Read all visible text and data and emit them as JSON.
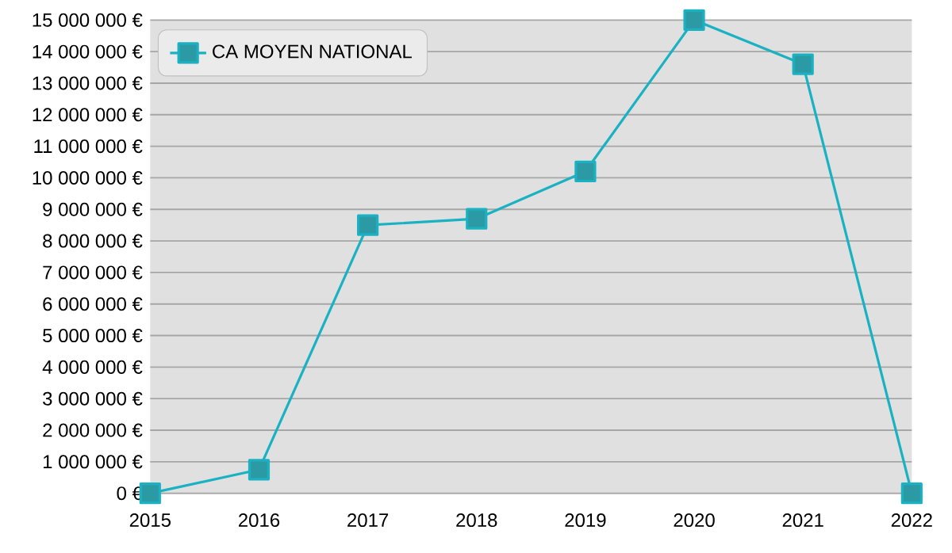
{
  "chart_data": {
    "type": "line",
    "x": [
      2015,
      2016,
      2017,
      2018,
      2019,
      2020,
      2021,
      2022
    ],
    "series": [
      {
        "name": "CA MOYEN NATIONAL",
        "color": "#1ab2c2",
        "values": [
          0,
          750000,
          8500000,
          8700000,
          10200000,
          15000000,
          13600000,
          0
        ]
      }
    ],
    "xlim": [
      2015,
      2022
    ],
    "xticks": [
      2015,
      2016,
      2017,
      2018,
      2019,
      2020,
      2021,
      2022
    ],
    "ylim": [
      0,
      15000000
    ],
    "yticks": [
      {
        "value": 0,
        "label": "0 €"
      },
      {
        "value": 1000000,
        "label": "1 000 000 €"
      },
      {
        "value": 2000000,
        "label": "2 000 000 €"
      },
      {
        "value": 3000000,
        "label": "3 000 000 €"
      },
      {
        "value": 4000000,
        "label": "4 000 000 €"
      },
      {
        "value": 5000000,
        "label": "5 000 000 €"
      },
      {
        "value": 6000000,
        "label": "6 000 000 €"
      },
      {
        "value": 7000000,
        "label": "7 000 000 €"
      },
      {
        "value": 8000000,
        "label": "8 000 000 €"
      },
      {
        "value": 9000000,
        "label": "9 000 000 €"
      },
      {
        "value": 10000000,
        "label": "10 000 000 €"
      },
      {
        "value": 11000000,
        "label": "11 000 000 €"
      },
      {
        "value": 12000000,
        "label": "12 000 000 €"
      },
      {
        "value": 13000000,
        "label": "13 000 000 €"
      },
      {
        "value": 14000000,
        "label": "14 000 000 €"
      },
      {
        "value": 15000000,
        "label": "15 000 000 €"
      }
    ],
    "grid": "y",
    "legend": "top left",
    "marker": "square",
    "line_style": "solid"
  }
}
